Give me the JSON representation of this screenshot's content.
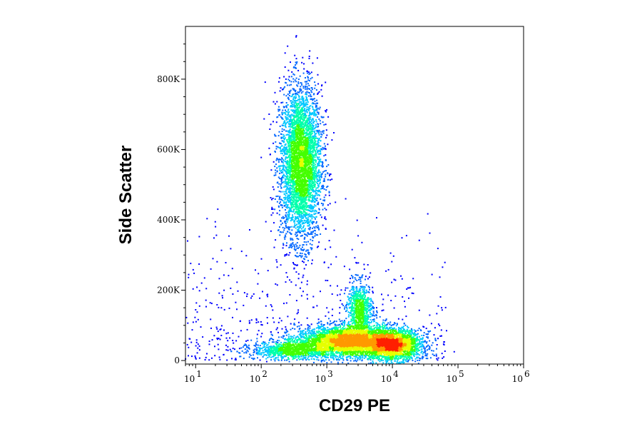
{
  "chart_data": {
    "type": "scatter",
    "xlabel": "CD29 PE",
    "ylabel": "Side Scatter",
    "x_scale": "log",
    "xlim": [
      7,
      1000000
    ],
    "ylim": [
      -10000,
      950000
    ],
    "grid": false,
    "legend": "none",
    "x_ticks": [
      {
        "value": 10,
        "base": "10",
        "exp": "1"
      },
      {
        "value": 100,
        "base": "10",
        "exp": "2"
      },
      {
        "value": 1000,
        "base": "10",
        "exp": "3"
      },
      {
        "value": 10000,
        "base": "10",
        "exp": "4"
      },
      {
        "value": 100000,
        "base": "10",
        "exp": "5"
      },
      {
        "value": 1000000,
        "base": "10",
        "exp": "6"
      }
    ],
    "y_ticks": [
      {
        "value": 0,
        "label": "0"
      },
      {
        "value": 200000,
        "label": "200K"
      },
      {
        "value": 400000,
        "label": "400K"
      },
      {
        "value": 600000,
        "label": "600K"
      },
      {
        "value": 800000,
        "label": "800K"
      }
    ],
    "populations": [
      {
        "x_median": 400,
        "y_mean": 560000,
        "x_spread_log": 0.16,
        "y_spread": 110000,
        "count": 4200
      },
      {
        "x_median": 2000,
        "y_mean": 55000,
        "x_spread_log": 0.38,
        "y_spread": 22000,
        "count": 3400
      },
      {
        "x_median": 10000,
        "y_mean": 45000,
        "x_spread_log": 0.22,
        "y_spread": 22000,
        "count": 2400
      },
      {
        "x_median": 3200,
        "y_mean": 140000,
        "x_spread_log": 0.1,
        "y_spread": 40000,
        "count": 900
      },
      {
        "x_median": 300,
        "y_mean": 30000,
        "x_spread_log": 0.3,
        "y_spread": 12000,
        "count": 900
      }
    ],
    "density_colors": [
      "#0000ff",
      "#0066ff",
      "#00c8ff",
      "#00ffaa",
      "#44ff00",
      "#e6ff00",
      "#ff9900",
      "#ff2000"
    ]
  }
}
